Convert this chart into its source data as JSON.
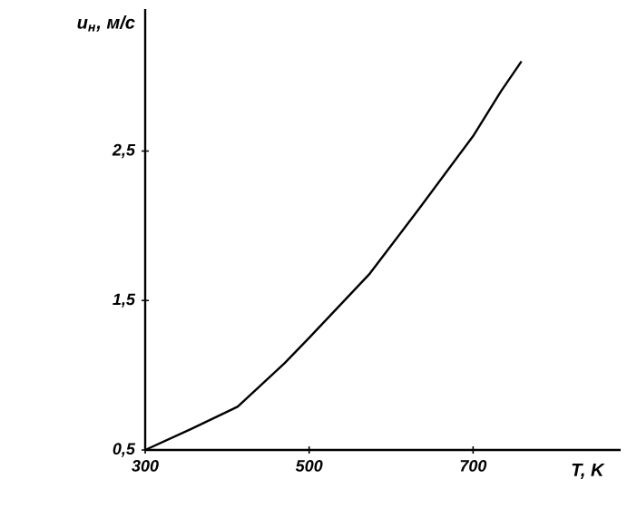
{
  "chart_data": {
    "type": "line",
    "xlabel": "T, K",
    "ylabel": "u$_{н}$, м/с",
    "x": [
      300,
      356,
      413,
      470,
      500,
      574,
      635,
      700,
      734,
      759
    ],
    "series": [
      {
        "color": "#000000",
        "values": [
          0.5,
          0.64,
          0.79,
          1.08,
          1.25,
          1.68,
          2.12,
          2.6,
          2.9,
          3.1
        ]
      }
    ],
    "xlim": [
      300,
      880
    ],
    "ylim": [
      0.5,
      3.45
    ],
    "xticks": [
      300,
      500,
      700
    ],
    "yticks": [
      {
        "value": 0.5,
        "label": "0,5"
      },
      {
        "value": 1.5,
        "label": "1,5"
      },
      {
        "value": 2.5,
        "label": "2,5"
      }
    ],
    "grid": false,
    "legend": false,
    "marker": "none",
    "line_style": "solid"
  }
}
